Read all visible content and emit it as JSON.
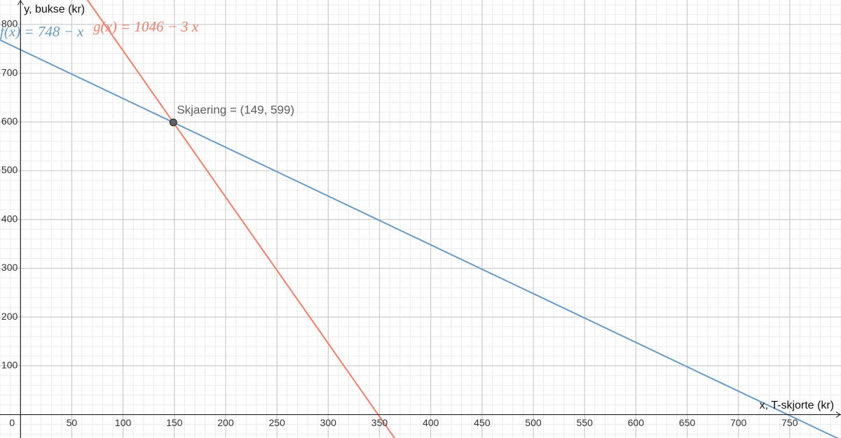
{
  "chart_data": {
    "type": "line",
    "x_label": "x, T-skjorte (kr)",
    "y_label": "y, bukse (kr)",
    "xlim": [
      -20,
      800
    ],
    "ylim": [
      -48,
      850
    ],
    "xticks": [
      0,
      50,
      100,
      150,
      200,
      250,
      300,
      350,
      400,
      450,
      500,
      550,
      600,
      650,
      700,
      750
    ],
    "yticks": [
      100,
      200,
      300,
      400,
      500,
      600,
      700,
      800
    ],
    "grid": true,
    "minor_grid_divisions": 5,
    "series": [
      {
        "name": "f(x) = 748 − x",
        "color": "#6a9bc6",
        "x": [
          -20,
          800
        ],
        "values": [
          768,
          -52
        ]
      },
      {
        "name": "g(x) = 1046 − 3 x",
        "color": "#f47c68",
        "x": [
          65,
          366
        ],
        "values": [
          851,
          -52
        ]
      }
    ],
    "points": [
      {
        "label": "Skjaering = (149, 599)",
        "x": 149,
        "y": 599,
        "color": "#606060"
      }
    ]
  }
}
